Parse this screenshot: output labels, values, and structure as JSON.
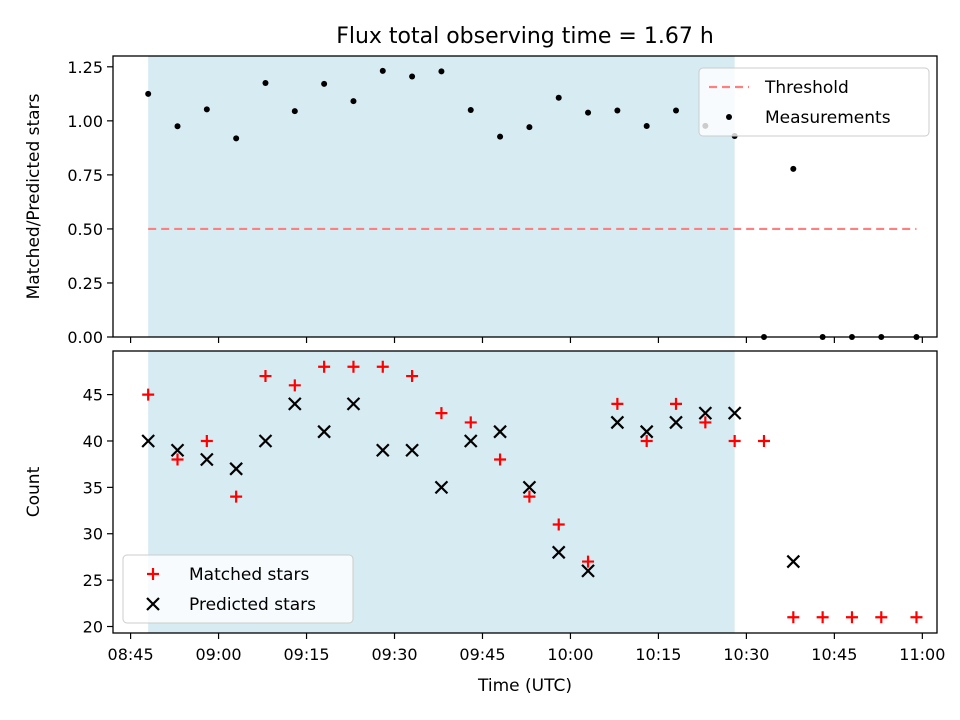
{
  "chart_data": {
    "title": "Flux total observing time = 1.67 h",
    "xlabel": "Time (UTC)",
    "x_ticks": [
      "08:45",
      "09:00",
      "09:15",
      "09:30",
      "09:45",
      "10:00",
      "10:15",
      "10:30",
      "10:45",
      "11:00"
    ],
    "x_tick_minutes": [
      525,
      540,
      555,
      570,
      585,
      600,
      615,
      630,
      645,
      660
    ],
    "xlim": [
      522,
      662.5
    ],
    "shaded_span": {
      "start": "08:48",
      "end": "10:28",
      "color": "#add8e6"
    },
    "panels": [
      {
        "type": "scatter",
        "ylabel": "Matched/Predicted stars",
        "ylim": [
          0,
          1.3
        ],
        "y_ticks": [
          "0.00",
          "0.25",
          "0.50",
          "0.75",
          "1.00",
          "1.25"
        ],
        "y_tick_values": [
          0,
          0.25,
          0.5,
          0.75,
          1.0,
          1.25
        ],
        "legend_position": "upper right",
        "threshold": {
          "name": "Threshold",
          "value": 0.5,
          "x_range": [
            "08:48",
            "10:59"
          ],
          "color": "#ff7f7f"
        },
        "series": [
          {
            "name": "Measurements",
            "marker": "dot",
            "color": "#000000",
            "x": [
              "08:48",
              "08:53",
              "08:58",
              "09:03",
              "09:08",
              "09:13",
              "09:18",
              "09:23",
              "09:28",
              "09:33",
              "09:38",
              "09:43",
              "09:48",
              "09:53",
              "09:58",
              "10:03",
              "10:08",
              "10:13",
              "10:18",
              "10:23",
              "10:28",
              "10:33",
              "10:38",
              "10:43",
              "10:48",
              "10:53",
              "10:59"
            ],
            "y": [
              1.125,
              0.975,
              1.053,
              0.919,
              1.175,
              1.045,
              1.171,
              1.091,
              1.231,
              1.205,
              1.229,
              1.05,
              0.927,
              0.971,
              1.107,
              1.038,
              1.048,
              0.976,
              1.048,
              0.977,
              0.93,
              0.0,
              0.778,
              0.0,
              0.0,
              0.0,
              0.0
            ]
          }
        ]
      },
      {
        "type": "scatter",
        "ylabel": "Count",
        "ylim": [
          19.3,
          49.7
        ],
        "y_ticks": [
          "20",
          "25",
          "30",
          "35",
          "40",
          "45"
        ],
        "y_tick_values": [
          20,
          25,
          30,
          35,
          40,
          45
        ],
        "legend_position": "lower left",
        "series": [
          {
            "name": "Matched stars",
            "marker": "plus",
            "color": "#ff0000",
            "x": [
              "08:48",
              "08:53",
              "08:58",
              "09:03",
              "09:08",
              "09:13",
              "09:18",
              "09:23",
              "09:28",
              "09:33",
              "09:38",
              "09:43",
              "09:48",
              "09:53",
              "09:58",
              "10:03",
              "10:08",
              "10:13",
              "10:18",
              "10:23",
              "10:28",
              "10:33",
              "10:38",
              "10:43",
              "10:48",
              "10:53",
              "10:59"
            ],
            "y": [
              45,
              38,
              40,
              34,
              47,
              46,
              48,
              48,
              48,
              47,
              43,
              42,
              38,
              34,
              31,
              27,
              44,
              40,
              44,
              42,
              40,
              40,
              21,
              21,
              21,
              21,
              21
            ]
          },
          {
            "name": "Predicted stars",
            "marker": "x",
            "color": "#000000",
            "x": [
              "08:48",
              "08:53",
              "08:58",
              "09:03",
              "09:08",
              "09:13",
              "09:18",
              "09:23",
              "09:28",
              "09:33",
              "09:38",
              "09:43",
              "09:48",
              "09:53",
              "09:58",
              "10:03",
              "10:08",
              "10:13",
              "10:18",
              "10:23",
              "10:28",
              "10:38"
            ],
            "y": [
              40,
              39,
              38,
              37,
              40,
              44,
              41,
              44,
              39,
              39,
              35,
              40,
              41,
              35,
              28,
              26,
              42,
              41,
              42,
              43,
              43,
              27
            ]
          }
        ]
      }
    ]
  }
}
